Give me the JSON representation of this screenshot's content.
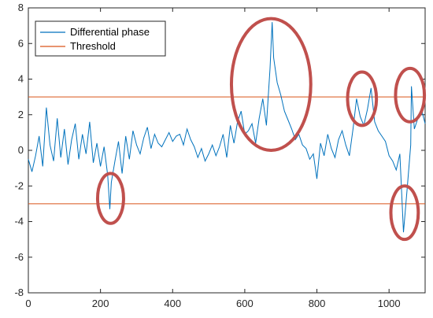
{
  "chart_data": {
    "type": "line",
    "title": "",
    "xlabel": "",
    "ylabel": "",
    "xlim": [
      0,
      1100
    ],
    "ylim": [
      -8,
      8
    ],
    "x_ticks": [
      0,
      200,
      400,
      600,
      800,
      1000
    ],
    "y_ticks": [
      -8,
      -6,
      -4,
      -2,
      0,
      2,
      4,
      6,
      8
    ],
    "grid": false,
    "legend_position": "top-left",
    "series": [
      {
        "name": "Differential phase",
        "color": "#0072BD",
        "x": [
          0,
          10,
          20,
          30,
          40,
          50,
          60,
          70,
          80,
          90,
          100,
          110,
          120,
          130,
          140,
          150,
          160,
          170,
          180,
          190,
          200,
          210,
          220,
          226,
          230,
          240,
          250,
          260,
          270,
          280,
          290,
          300,
          310,
          320,
          330,
          340,
          350,
          360,
          370,
          380,
          390,
          400,
          410,
          420,
          430,
          440,
          450,
          460,
          470,
          480,
          490,
          500,
          510,
          520,
          530,
          540,
          550,
          560,
          570,
          580,
          590,
          600,
          610,
          620,
          630,
          640,
          650,
          660,
          670,
          676,
          680,
          690,
          700,
          710,
          720,
          730,
          740,
          750,
          760,
          770,
          780,
          790,
          800,
          810,
          820,
          830,
          840,
          850,
          860,
          870,
          880,
          890,
          900,
          910,
          920,
          930,
          940,
          950,
          960,
          970,
          980,
          990,
          1000,
          1010,
          1020,
          1030,
          1040,
          1045,
          1050,
          1060,
          1062,
          1070,
          1080,
          1090,
          1100
        ],
        "y": [
          -0.5,
          -1.2,
          -0.3,
          0.8,
          -0.9,
          2.4,
          0.3,
          -0.6,
          1.8,
          -0.4,
          1.2,
          -0.8,
          0.6,
          1.5,
          -0.5,
          0.9,
          -0.2,
          1.6,
          -0.7,
          0.4,
          -0.9,
          0.2,
          -1.4,
          -3.3,
          -1.8,
          -0.6,
          0.5,
          -1.3,
          0.8,
          -0.5,
          1.1,
          0.3,
          -0.2,
          0.7,
          1.3,
          0.1,
          0.9,
          0.4,
          0.2,
          0.6,
          1.0,
          0.5,
          0.8,
          0.9,
          0.3,
          1.2,
          0.6,
          0.2,
          -0.4,
          0.1,
          -0.6,
          -0.2,
          0.3,
          -0.3,
          0.2,
          0.9,
          -0.4,
          1.4,
          0.4,
          1.6,
          2.2,
          0.9,
          1.1,
          1.5,
          0.4,
          1.8,
          2.9,
          1.4,
          4.6,
          7.2,
          5.2,
          3.8,
          3.1,
          2.2,
          1.7,
          1.2,
          0.6,
          0.9,
          0.3,
          0.1,
          -0.5,
          -0.2,
          -1.6,
          0.4,
          -0.3,
          0.9,
          0.1,
          -0.4,
          0.6,
          1.1,
          0.3,
          -0.3,
          1.2,
          2.9,
          1.9,
          1.4,
          2.3,
          3.5,
          1.6,
          1.1,
          0.8,
          0.5,
          -0.3,
          -0.6,
          -1.1,
          -0.2,
          -4.6,
          -3.4,
          -2.2,
          0.3,
          3.6,
          1.2,
          1.8,
          2.3,
          1.5
        ]
      },
      {
        "name": "Threshold",
        "color": "#D95319",
        "y_values": [
          3,
          -3
        ]
      }
    ],
    "annotations": [
      {
        "shape": "ellipse",
        "color": "#C0504D",
        "cx": 228,
        "cy": -2.7,
        "rx": 36,
        "ry": 1.4
      },
      {
        "shape": "ellipse",
        "color": "#C0504D",
        "cx": 673,
        "cy": 3.7,
        "rx": 110,
        "ry": 3.7
      },
      {
        "shape": "ellipse",
        "color": "#C0504D",
        "cx": 925,
        "cy": 2.9,
        "rx": 40,
        "ry": 1.5
      },
      {
        "shape": "ellipse",
        "color": "#C0504D",
        "cx": 1058,
        "cy": 3.1,
        "rx": 40,
        "ry": 1.5
      },
      {
        "shape": "ellipse",
        "color": "#C0504D",
        "cx": 1043,
        "cy": -3.5,
        "rx": 38,
        "ry": 1.5
      }
    ]
  }
}
